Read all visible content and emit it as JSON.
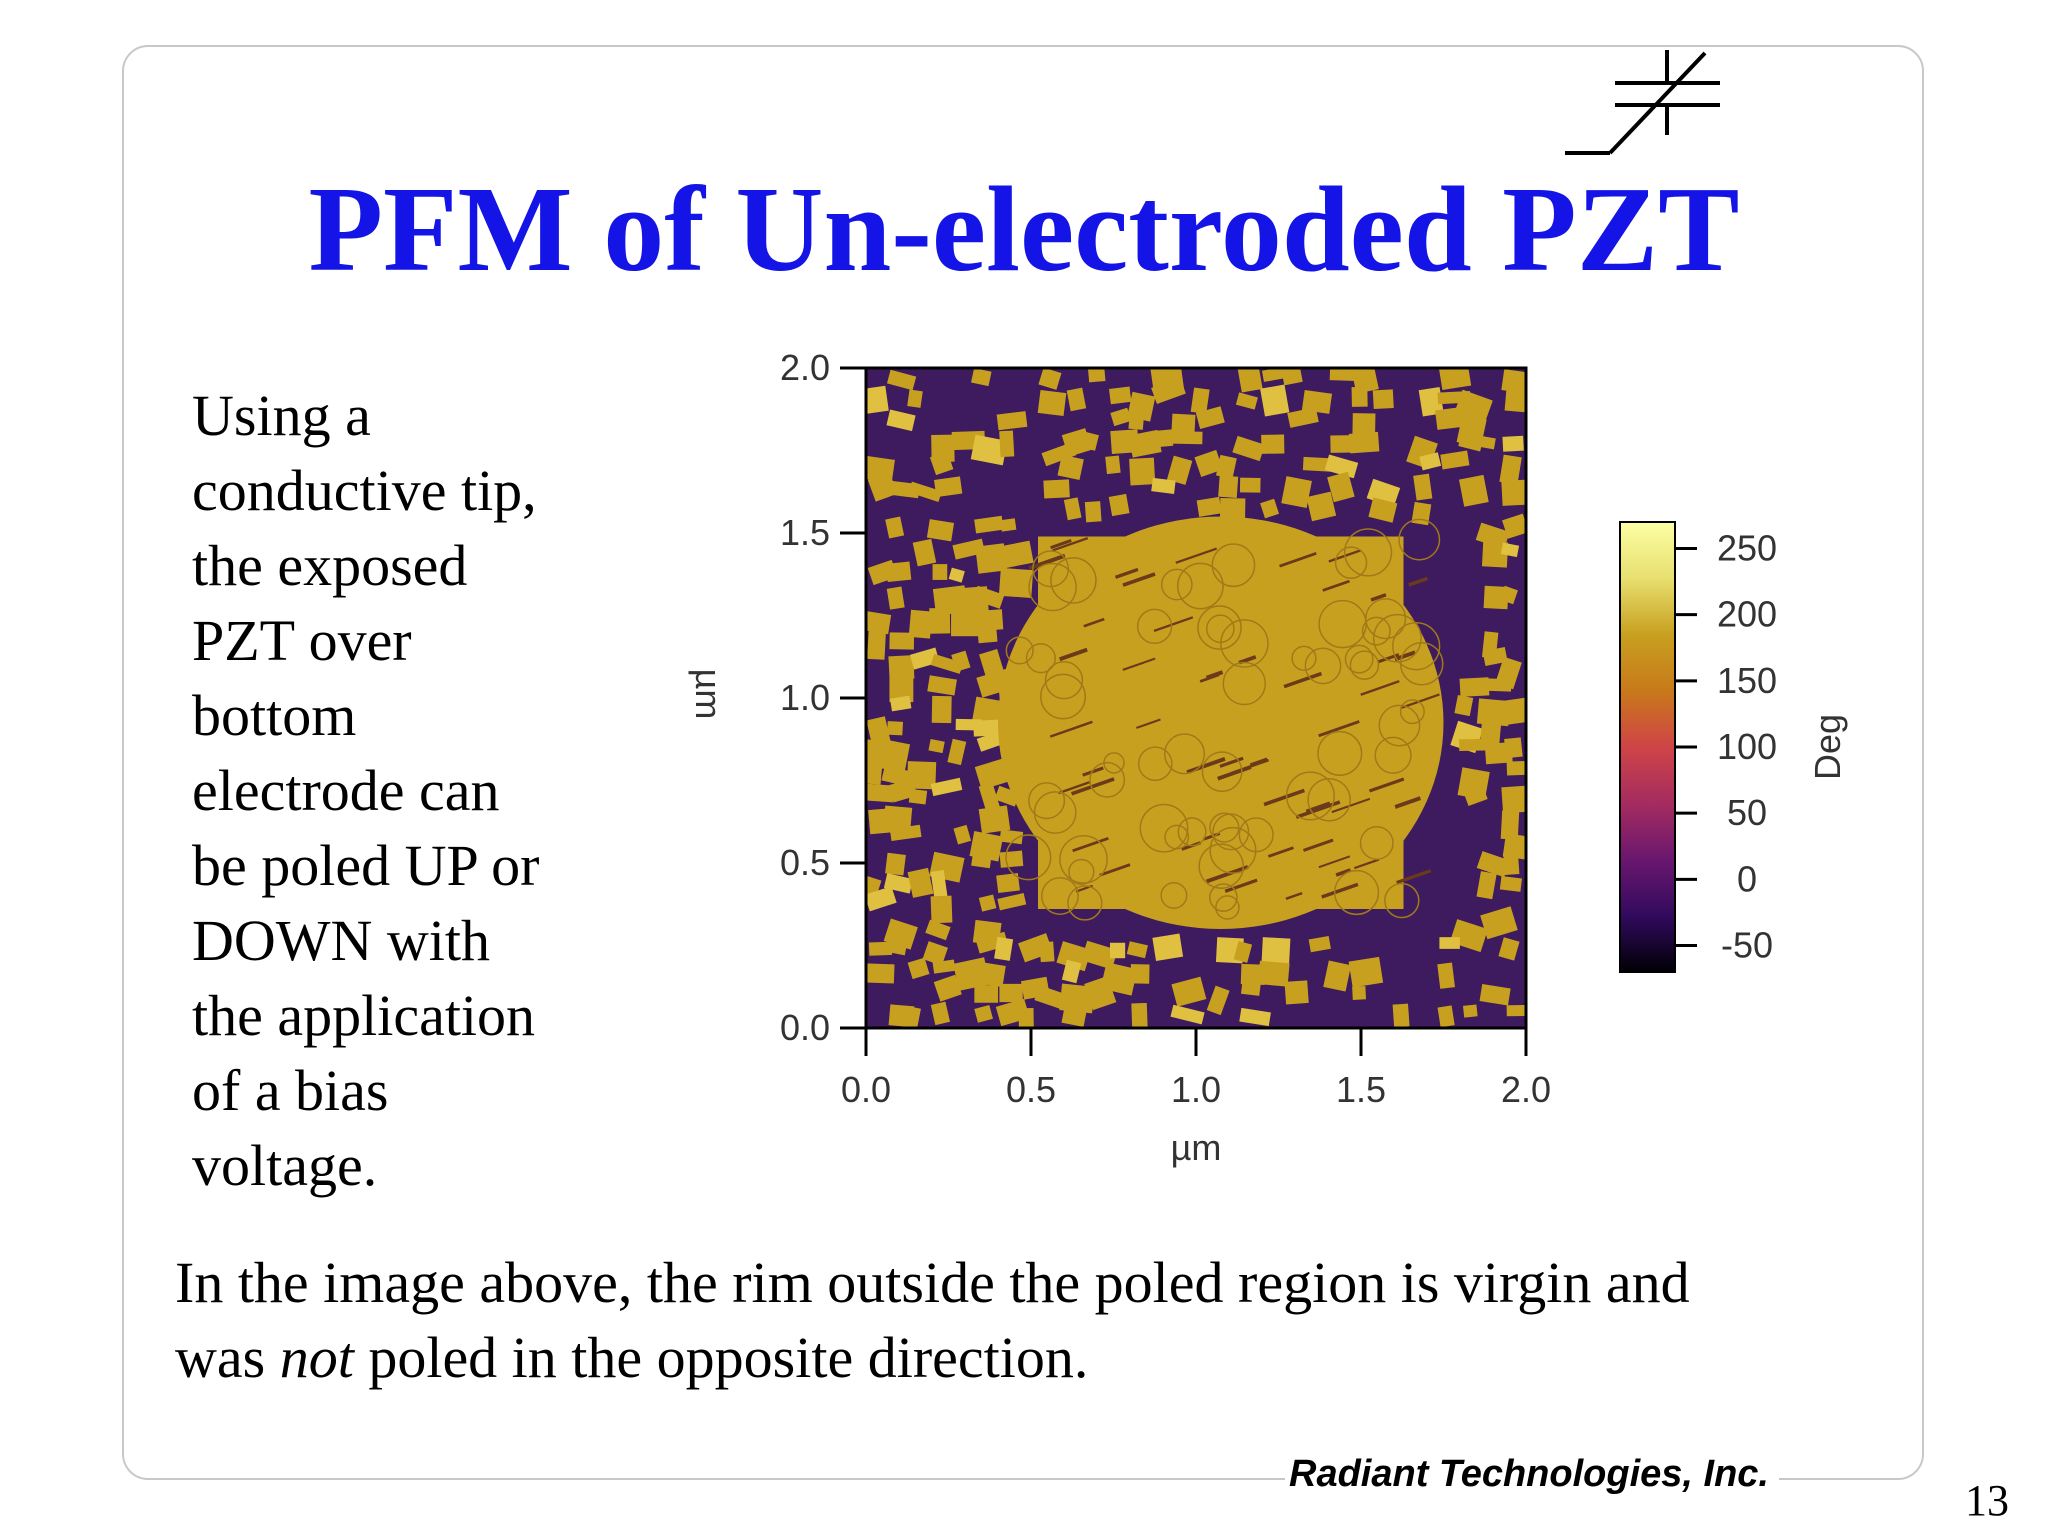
{
  "slide": {
    "title": "PFM of Un-electroded PZT",
    "left_lines": [
      "Using a",
      "conductive tip,",
      "the exposed",
      "PZT over",
      "bottom",
      "electrode can",
      "be poled UP or",
      "DOWN with",
      "the application",
      "of a bias",
      "voltage."
    ],
    "bottom_line1": "In the image above, the rim outside the poled region is virgin and",
    "bottom_line2_pre": "was ",
    "bottom_line2_em": "not",
    "bottom_line2_post": " poled in the opposite direction.",
    "footer": "Radiant Technologies, Inc.",
    "page_number": "13",
    "title_color": "#1414e6"
  },
  "chart_data": {
    "type": "heatmap",
    "title": "",
    "xlabel": "µm",
    "ylabel": "µm",
    "xlim": [
      0.0,
      2.0
    ],
    "ylim": [
      0.0,
      2.0
    ],
    "x_ticks": [
      "0.0",
      "0.5",
      "1.0",
      "1.5",
      "2.0"
    ],
    "y_ticks": [
      "0.0",
      "0.5",
      "1.0",
      "1.5",
      "2.0"
    ],
    "poled_region_x": [
      0.4,
      1.75
    ],
    "poled_region_y": [
      0.3,
      1.55
    ],
    "colorbar": {
      "label": "Deg",
      "range": [
        -70,
        270
      ],
      "ticks": [
        "250",
        "200",
        "150",
        "100",
        "50",
        "0",
        "-50"
      ],
      "colormap": [
        "#000004",
        "#320a5e",
        "#6a176e",
        "#a52c60",
        "#cf4446",
        "#c8791a",
        "#c8a020",
        "#e8e070",
        "#fcffa4"
      ]
    },
    "colors": {
      "poled": "#c8a020",
      "opposite": "#3e1b5e"
    }
  }
}
